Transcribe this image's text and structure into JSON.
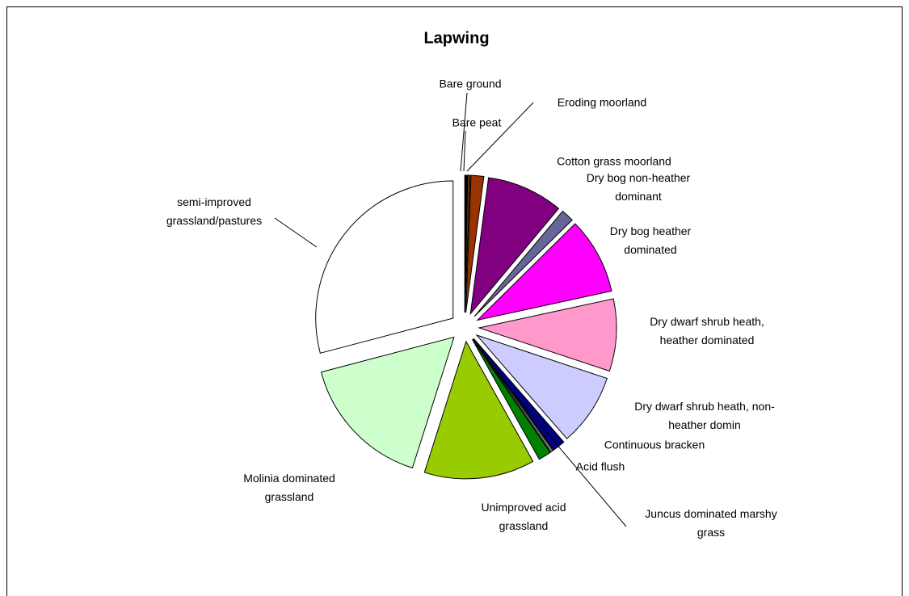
{
  "chart_data": {
    "type": "pie",
    "title": "Lapwing",
    "categories": [
      "Bare ground",
      "Bare peat",
      "Eroding moorland",
      "Cotton grass moorland",
      "Dry bog non-heather dominant",
      "Dry bog heather dominated",
      "Dry dwarf shrub heath, heather dominated",
      "Dry dwarf shrub heath, non-heather domin",
      "Continuous bracken",
      "Juncus dominated marshy grass",
      "Acid flush",
      "Unimproved acid grassland",
      "Molinia dominated grassland",
      "semi-improved grassland/pastures"
    ],
    "values": [
      0.3,
      0.3,
      1.5,
      9,
      1.5,
      9,
      8.5,
      8.5,
      1.5,
      0.3,
      1.5,
      13,
      16,
      29.1
    ],
    "colors": [
      "#000000",
      "#663300",
      "#993300",
      "#800080",
      "#666699",
      "#FF00FF",
      "#FF99CC",
      "#CCCCFF",
      "#000080",
      "#808080",
      "#008000",
      "#99CC00",
      "#CCFFCC",
      "#FFFFFF"
    ]
  }
}
